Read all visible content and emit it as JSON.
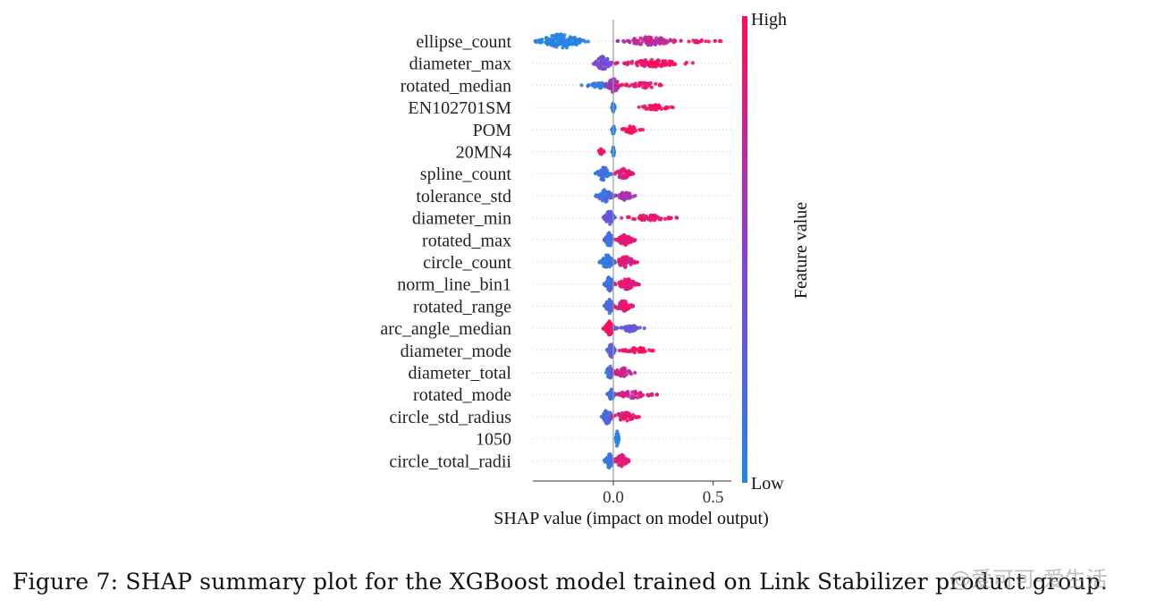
{
  "chart_data": {
    "type": "scatter",
    "subtype": "shap-beeswarm",
    "title": "",
    "xlabel": "SHAP value (impact on model output)",
    "ylabel": "",
    "xlim": [
      -0.42,
      0.6
    ],
    "xticks": [
      0.0,
      0.5
    ],
    "xtick_labels": [
      "0.0",
      "0.5"
    ],
    "zero_line": true,
    "grid": false,
    "colorbar": {
      "label": "Feature value",
      "high_label": "High",
      "low_label": "Low",
      "low_color": "#1e88e5",
      "high_color": "#ff0d57"
    },
    "features": [
      {
        "name": "ellipse_count",
        "clusters": [
          {
            "center": -0.26,
            "spread": 0.14,
            "width": 8,
            "n": 120,
            "v": 0.0
          },
          {
            "center": 0.18,
            "spread": 0.16,
            "width": 5,
            "n": 90,
            "v": 0.75
          },
          {
            "center": 0.42,
            "spread": 0.12,
            "width": 1.5,
            "n": 20,
            "v": 1.0
          }
        ]
      },
      {
        "name": "diameter_max",
        "clusters": [
          {
            "center": -0.05,
            "spread": 0.05,
            "width": 8,
            "n": 60,
            "v": 0.4
          },
          {
            "center": 0.2,
            "spread": 0.2,
            "width": 4,
            "n": 90,
            "v": 0.95
          }
        ]
      },
      {
        "name": "rotated_median",
        "clusters": [
          {
            "center": -0.06,
            "spread": 0.1,
            "width": 3,
            "n": 50,
            "v": 0.05
          },
          {
            "center": 0.0,
            "spread": 0.04,
            "width": 8,
            "n": 50,
            "v": 0.6
          },
          {
            "center": 0.15,
            "spread": 0.14,
            "width": 3,
            "n": 40,
            "v": 0.95
          }
        ]
      },
      {
        "name": "EN102701SM",
        "clusters": [
          {
            "center": 0.0,
            "spread": 0.008,
            "width": 5,
            "n": 30,
            "v": 0.0
          },
          {
            "center": 0.2,
            "spread": 0.1,
            "width": 3,
            "n": 40,
            "v": 1.0
          }
        ]
      },
      {
        "name": "POM",
        "clusters": [
          {
            "center": 0.0,
            "spread": 0.008,
            "width": 5,
            "n": 30,
            "v": 0.0
          },
          {
            "center": 0.09,
            "spread": 0.06,
            "width": 4,
            "n": 30,
            "v": 1.0
          }
        ]
      },
      {
        "name": "20MN4",
        "clusters": [
          {
            "center": -0.06,
            "spread": 0.02,
            "width": 3,
            "n": 20,
            "v": 1.0
          },
          {
            "center": 0.0,
            "spread": 0.006,
            "width": 5,
            "n": 25,
            "v": 0.0
          }
        ]
      },
      {
        "name": "spline_count",
        "clusters": [
          {
            "center": -0.05,
            "spread": 0.04,
            "width": 8,
            "n": 60,
            "v": 0.15
          },
          {
            "center": 0.05,
            "spread": 0.05,
            "width": 6,
            "n": 50,
            "v": 0.85
          }
        ]
      },
      {
        "name": "tolerance_std",
        "clusters": [
          {
            "center": -0.04,
            "spread": 0.05,
            "width": 7,
            "n": 60,
            "v": 0.15
          },
          {
            "center": 0.06,
            "spread": 0.05,
            "width": 5,
            "n": 40,
            "v": 0.6
          }
        ]
      },
      {
        "name": "diameter_min",
        "clusters": [
          {
            "center": -0.02,
            "spread": 0.03,
            "width": 8,
            "n": 60,
            "v": 0.3
          },
          {
            "center": 0.18,
            "spread": 0.14,
            "width": 3,
            "n": 60,
            "v": 0.95
          }
        ]
      },
      {
        "name": "rotated_max",
        "clusters": [
          {
            "center": -0.02,
            "spread": 0.025,
            "width": 8,
            "n": 60,
            "v": 0.15
          },
          {
            "center": 0.06,
            "spread": 0.05,
            "width": 6,
            "n": 60,
            "v": 0.9
          }
        ]
      },
      {
        "name": "circle_count",
        "clusters": [
          {
            "center": -0.03,
            "spread": 0.04,
            "width": 8,
            "n": 60,
            "v": 0.15
          },
          {
            "center": 0.06,
            "spread": 0.06,
            "width": 6,
            "n": 60,
            "v": 0.85
          }
        ]
      },
      {
        "name": "norm_line_bin1",
        "clusters": [
          {
            "center": -0.02,
            "spread": 0.025,
            "width": 8,
            "n": 60,
            "v": 0.15
          },
          {
            "center": 0.07,
            "spread": 0.06,
            "width": 6,
            "n": 60,
            "v": 0.9
          }
        ]
      },
      {
        "name": "rotated_range",
        "clusters": [
          {
            "center": -0.02,
            "spread": 0.025,
            "width": 8,
            "n": 60,
            "v": 0.15
          },
          {
            "center": 0.05,
            "spread": 0.05,
            "width": 6,
            "n": 50,
            "v": 0.9
          }
        ]
      },
      {
        "name": "arc_angle_median",
        "clusters": [
          {
            "center": -0.02,
            "spread": 0.03,
            "width": 8,
            "n": 70,
            "v": 1.0
          },
          {
            "center": 0.08,
            "spread": 0.08,
            "width": 4,
            "n": 40,
            "v": 0.35
          }
        ]
      },
      {
        "name": "diameter_mode",
        "clusters": [
          {
            "center": -0.01,
            "spread": 0.02,
            "width": 8,
            "n": 50,
            "v": 0.3
          },
          {
            "center": 0.12,
            "spread": 0.09,
            "width": 3,
            "n": 40,
            "v": 1.0
          }
        ]
      },
      {
        "name": "diameter_total",
        "clusters": [
          {
            "center": -0.02,
            "spread": 0.02,
            "width": 8,
            "n": 50,
            "v": 0.15
          },
          {
            "center": 0.05,
            "spread": 0.06,
            "width": 5,
            "n": 40,
            "v": 0.8
          }
        ]
      },
      {
        "name": "rotated_mode",
        "clusters": [
          {
            "center": -0.01,
            "spread": 0.02,
            "width": 6,
            "n": 40,
            "v": 0.2
          },
          {
            "center": 0.1,
            "spread": 0.12,
            "width": 4,
            "n": 50,
            "v": 0.8
          }
        ]
      },
      {
        "name": "circle_std_radius",
        "clusters": [
          {
            "center": -0.03,
            "spread": 0.03,
            "width": 8,
            "n": 60,
            "v": 0.2
          },
          {
            "center": 0.06,
            "spread": 0.07,
            "width": 5,
            "n": 50,
            "v": 0.85
          }
        ]
      },
      {
        "name": "1050",
        "clusters": [
          {
            "center": 0.02,
            "spread": 0.008,
            "width": 9,
            "n": 50,
            "v": 0.0
          }
        ]
      },
      {
        "name": "circle_total_radii",
        "clusters": [
          {
            "center": -0.02,
            "spread": 0.025,
            "width": 8,
            "n": 50,
            "v": 0.15
          },
          {
            "center": 0.04,
            "spread": 0.04,
            "width": 7,
            "n": 50,
            "v": 0.85
          }
        ]
      }
    ]
  },
  "caption": "Figure 7: SHAP summary plot for the XGBoost model trained on Link Stabilizer product group.",
  "watermark": "@爱可可-爱生活"
}
